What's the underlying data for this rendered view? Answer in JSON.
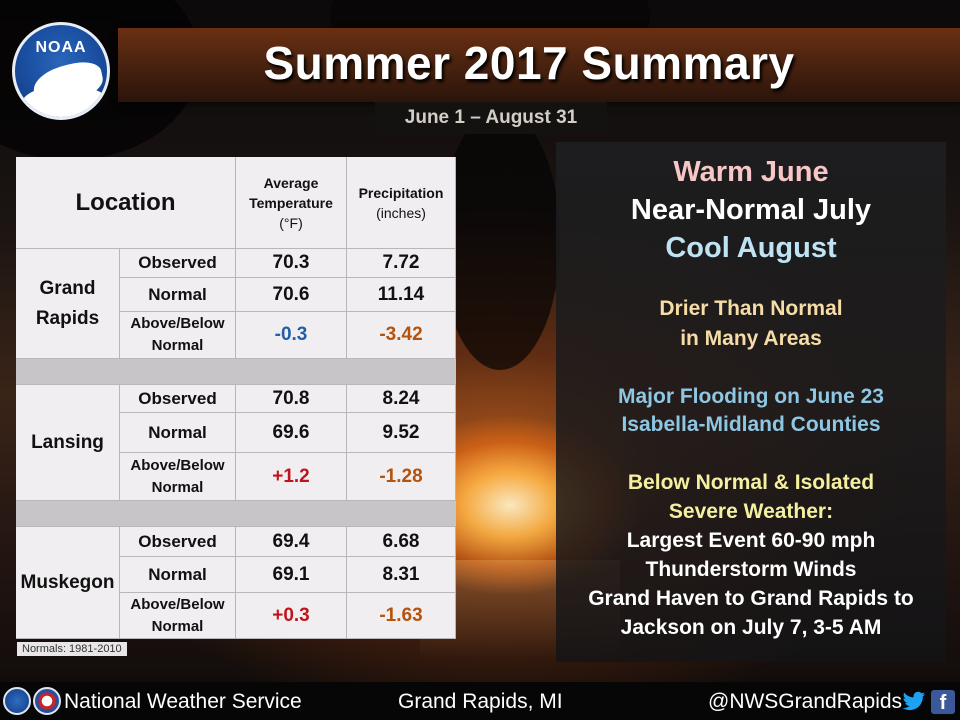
{
  "header": {
    "title": "Summer 2017 Summary",
    "subtitle": "June 1 – August 31",
    "logo_text": "NOAA"
  },
  "table": {
    "headers": {
      "location": "Location",
      "avg_temp": [
        "Average",
        "Temperature",
        "(°F)"
      ],
      "precip": [
        "Precipitation",
        "(inches)"
      ]
    },
    "row_labels": {
      "observed": "Observed",
      "normal": "Normal",
      "above_below": [
        "Above/Below",
        "Normal"
      ]
    },
    "locations": [
      {
        "name": [
          "Grand",
          "Rapids"
        ],
        "observed": [
          "70.3",
          "7.72"
        ],
        "normal": [
          "70.6",
          "11.14"
        ],
        "diff": [
          "-0.3",
          "-3.42"
        ],
        "diff_colors": [
          "#1f5fa8",
          "#b5520c"
        ]
      },
      {
        "name": [
          "Lansing"
        ],
        "observed": [
          "70.8",
          "8.24"
        ],
        "normal": [
          "69.6",
          "9.52"
        ],
        "diff": [
          "+1.2",
          "-1.28"
        ],
        "diff_colors": [
          "#c0141c",
          "#b5520c"
        ]
      },
      {
        "name": [
          "Muskegon"
        ],
        "observed": [
          "69.4",
          "6.68"
        ],
        "normal": [
          "69.1",
          "8.31"
        ],
        "diff": [
          "+0.3",
          "-1.63"
        ],
        "diff_colors": [
          "#c0141c",
          "#b5520c"
        ]
      }
    ],
    "normals_note": "Normals: 1981-2010"
  },
  "summary": {
    "warm_june": "Warm June",
    "near_normal_july": "Near-Normal July",
    "cool_august": "Cool August",
    "drier": [
      "Drier Than Normal",
      "in Many Areas"
    ],
    "flooding": [
      "Major Flooding on June 23",
      "Isabella-Midland Counties"
    ],
    "severe_heading": [
      "Below Normal & Isolated",
      "Severe Weather:"
    ],
    "severe_detail": [
      "Largest Event 60-90 mph",
      "Thunderstorm Winds",
      "Grand Haven to Grand Rapids to",
      "Jackson on July 7, 3-5 AM"
    ],
    "colors": {
      "warm": "#f7c7c7",
      "white": "#ffffff",
      "cool": "#bfe3f2",
      "drier": "#f6dca6",
      "flood": "#8ec7e4",
      "severe": "#f5f0a0"
    }
  },
  "footer": {
    "agency": "National Weather Service",
    "location": "Grand Rapids, MI",
    "handle": "@NWSGrandRapids",
    "icons": [
      "noaa-icon",
      "nws-icon",
      "twitter-icon",
      "facebook-icon"
    ]
  }
}
